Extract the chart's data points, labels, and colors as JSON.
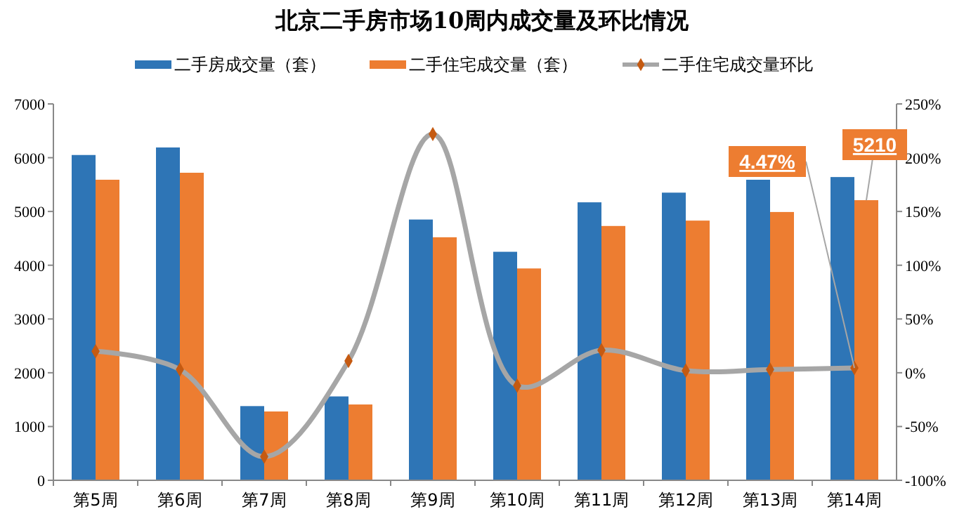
{
  "chart_data": {
    "type": "bar",
    "title": "北京二手房市场10周内成交量及环比情况",
    "categories": [
      "第5周",
      "第6周",
      "第7周",
      "第8周",
      "第9周",
      "第10周",
      "第11周",
      "第12周",
      "第13周",
      "第14周"
    ],
    "series": [
      {
        "name": "二手房成交量（套）",
        "color": "#2e75b6",
        "values": [
          6050,
          6190,
          1380,
          1560,
          4850,
          4250,
          5170,
          5350,
          5590,
          5640
        ]
      },
      {
        "name": "二手住宅成交量（套）",
        "color": "#ed7d31",
        "values": [
          5590,
          5720,
          1280,
          1410,
          4520,
          3940,
          4730,
          4830,
          4990,
          5210
        ],
        "value_labels": [
          null,
          null,
          null,
          null,
          null,
          null,
          null,
          null,
          null,
          "5210"
        ]
      },
      {
        "name": "二手住宅成交量环比",
        "type": "line",
        "axis": "y2",
        "color": "#a6a6a6",
        "marker": "diamond",
        "values": [
          20,
          3,
          -78,
          11,
          222,
          -12,
          21,
          2,
          3,
          4.47
        ],
        "value_labels": [
          null,
          null,
          null,
          null,
          null,
          null,
          null,
          null,
          null,
          "4.47%"
        ]
      }
    ],
    "ylim": [
      0,
      7000
    ],
    "yticks": [
      0,
      1000,
      2000,
      3000,
      4000,
      5000,
      6000,
      7000
    ],
    "y2lim": [
      -100,
      250
    ],
    "y2ticks": [
      {
        "value": -100,
        "label": "-100%"
      },
      {
        "value": -50,
        "label": "-50%"
      },
      {
        "value": 0,
        "label": "0%"
      },
      {
        "value": 50,
        "label": "50%"
      },
      {
        "value": 100,
        "label": "100%"
      },
      {
        "value": 150,
        "label": "150%"
      },
      {
        "value": 200,
        "label": "200%"
      },
      {
        "value": 250,
        "label": "250%"
      }
    ],
    "grid": false,
    "legend": "top"
  }
}
